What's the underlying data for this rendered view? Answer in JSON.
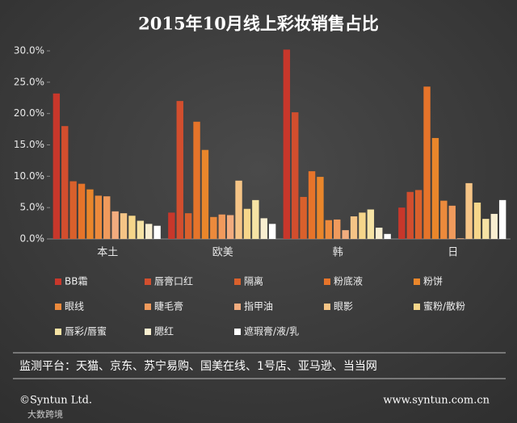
{
  "chart_data": {
    "type": "bar",
    "title": "2015年10月线上彩妆销售占比",
    "categories": [
      "本土",
      "欧美",
      "韩",
      "日"
    ],
    "series": [
      {
        "name": "BB霜",
        "color": "#c8372b",
        "values": [
          23.2,
          4.2,
          30.2,
          5.0
        ]
      },
      {
        "name": "唇膏口红",
        "color": "#d24e2e",
        "values": [
          18.0,
          22.0,
          20.2,
          7.5
        ]
      },
      {
        "name": "隔离",
        "color": "#d9602c",
        "values": [
          9.2,
          4.1,
          6.7,
          7.8
        ]
      },
      {
        "name": "粉底液",
        "color": "#e6742a",
        "values": [
          8.8,
          18.7,
          10.8,
          24.3
        ]
      },
      {
        "name": "粉饼",
        "color": "#e9862b",
        "values": [
          7.9,
          14.2,
          9.9,
          16.1
        ]
      },
      {
        "name": "眼线",
        "color": "#ec8a3c",
        "values": [
          6.9,
          3.5,
          3.0,
          6.1
        ]
      },
      {
        "name": "睫毛膏",
        "color": "#f09a5c",
        "values": [
          6.8,
          3.9,
          3.1,
          5.3
        ]
      },
      {
        "name": "指甲油",
        "color": "#f2ac7e",
        "values": [
          4.4,
          3.8,
          1.4,
          0.1
        ]
      },
      {
        "name": "眼影",
        "color": "#f5c486",
        "values": [
          4.1,
          9.3,
          3.6,
          8.9
        ]
      },
      {
        "name": "蜜粉/散粉",
        "color": "#f6d68a",
        "values": [
          3.7,
          4.8,
          4.2,
          5.8
        ]
      },
      {
        "name": "唇彩/唇蜜",
        "color": "#f6e3a4",
        "values": [
          2.9,
          6.2,
          4.7,
          3.2
        ]
      },
      {
        "name": "腮红",
        "color": "#f8eed0",
        "values": [
          2.4,
          3.3,
          1.8,
          4.0
        ]
      },
      {
        "name": "遮瑕膏/液/乳",
        "color": "#ffffff",
        "values": [
          2.1,
          2.4,
          0.8,
          6.2
        ]
      }
    ],
    "ylim": [
      0,
      30
    ],
    "yticks": [
      {
        "value": 0,
        "label": "0.0%"
      },
      {
        "value": 5,
        "label": "5.0%"
      },
      {
        "value": 10,
        "label": "10.0%"
      },
      {
        "value": 15,
        "label": "15.0%"
      },
      {
        "value": 20,
        "label": "20.0%"
      },
      {
        "value": 25,
        "label": "25.0%"
      },
      {
        "value": 30,
        "label": "30.0%"
      }
    ],
    "grid": false,
    "note": "监测平台：天猫、京东、苏宁易购、国美在线、1号店、亚马逊、当当网",
    "copyright": "©Syntun Ltd.",
    "website": "www.syntun.com.cn",
    "watermark": "大数跨境"
  }
}
